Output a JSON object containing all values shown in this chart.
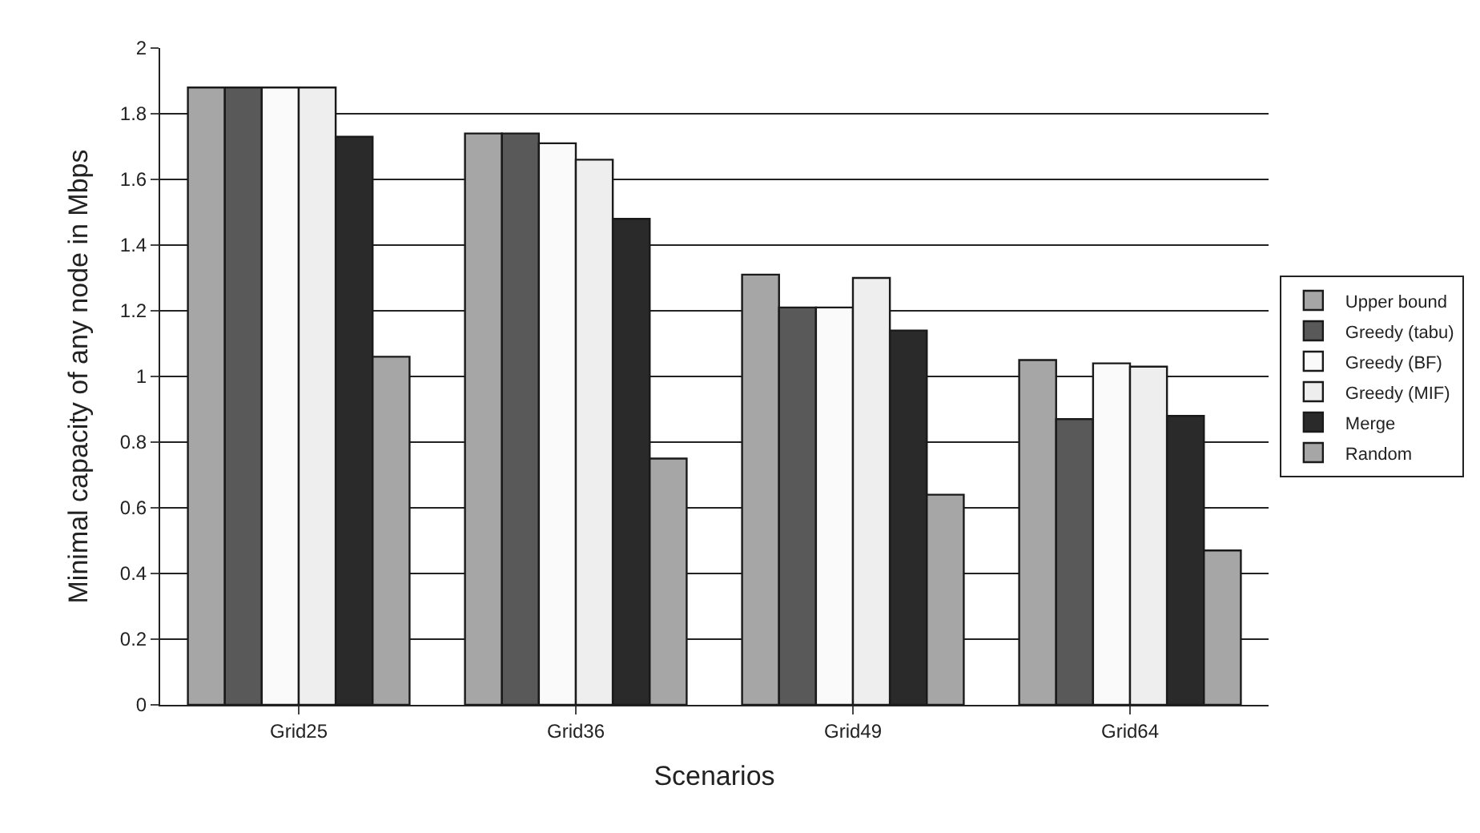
{
  "chart_data": {
    "type": "bar",
    "xlabel": "Scenarios",
    "ylabel": "Minimal capacity of any node in Mbps",
    "categories": [
      "Grid25",
      "Grid36",
      "Grid49",
      "Grid64"
    ],
    "series": [
      {
        "name": "Upper bound",
        "color": "#a6a6a6",
        "values": [
          1.88,
          1.74,
          1.31,
          1.05
        ]
      },
      {
        "name": "Greedy (tabu)",
        "color": "#595959",
        "values": [
          1.88,
          1.74,
          1.21,
          0.87
        ]
      },
      {
        "name": "Greedy (BF)",
        "color": "#fafafa",
        "values": [
          1.88,
          1.71,
          1.21,
          1.04
        ]
      },
      {
        "name": "Greedy (MIF)",
        "color": "#eeeeee",
        "values": [
          1.88,
          1.66,
          1.3,
          1.03
        ]
      },
      {
        "name": "Merge",
        "color": "#2a2a2a",
        "values": [
          1.73,
          1.48,
          1.14,
          0.88
        ]
      },
      {
        "name": "Random",
        "color": "#a6a6a6",
        "values": [
          1.06,
          0.75,
          0.64,
          0.47
        ]
      }
    ],
    "ylim": [
      0,
      2
    ],
    "yticks": [
      0,
      0.2,
      0.4,
      0.6,
      0.8,
      1,
      1.2,
      1.4,
      1.6,
      1.8,
      2
    ],
    "grid": "y",
    "legend": "right"
  }
}
